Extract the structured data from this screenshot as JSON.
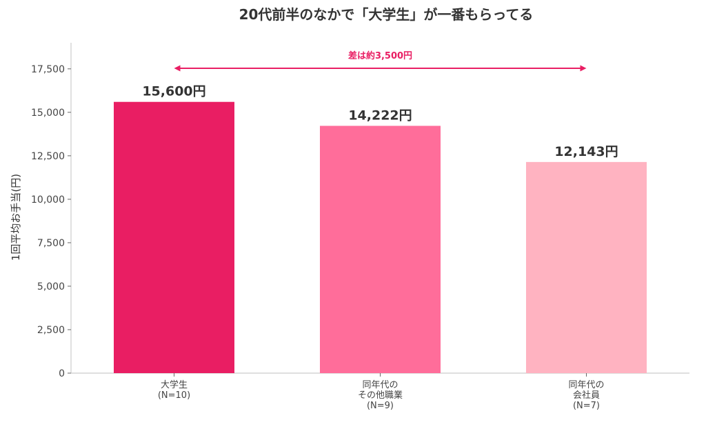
{
  "chart_data": {
    "type": "bar",
    "title": "20代前半のなかで「大学生」が一番もらってる",
    "ylabel": "1回平均お手当(円)",
    "xlabel": "",
    "ylim": [
      0,
      19000
    ],
    "yticks": [
      0,
      2500,
      5000,
      7500,
      10000,
      12500,
      15000,
      17500
    ],
    "ytick_labels": [
      "0",
      "2,500",
      "5,000",
      "7,500",
      "10,000",
      "12,500",
      "15,000",
      "17,500"
    ],
    "categories": [
      [
        "大学生",
        "(N=10)"
      ],
      [
        "同年代の",
        "その他職業",
        "(N=9)"
      ],
      [
        "同年代の",
        "会社員",
        "(N=7)"
      ]
    ],
    "values": [
      15600,
      14222,
      12143
    ],
    "value_labels": [
      "15,600円",
      "14,222円",
      "12,143円"
    ],
    "bar_colors": [
      "#e91e63",
      "#ff6d9a",
      "#ffb3c1"
    ],
    "annotation": {
      "text": "差は約3,500円",
      "from_category": 0,
      "to_category": 2,
      "color": "#e91e63"
    },
    "grid": false,
    "legend": "none"
  }
}
